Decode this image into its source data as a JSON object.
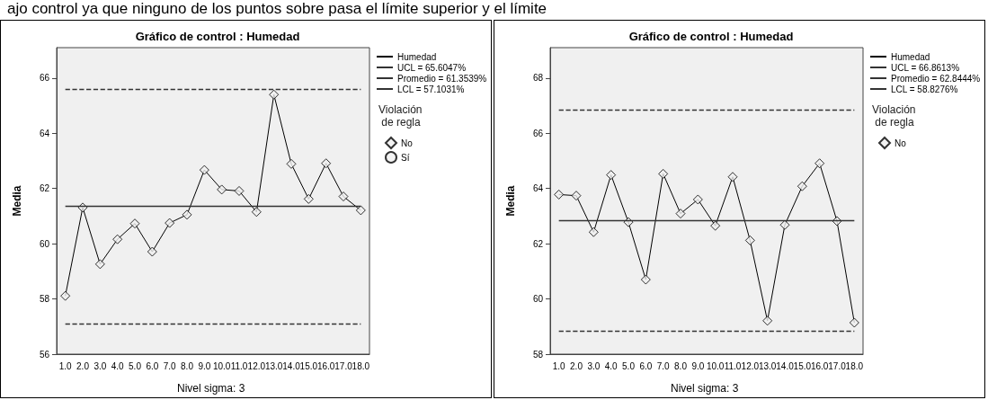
{
  "chart_data": [
    {
      "type": "line",
      "title": "Gráfico de control : Humedad",
      "ylabel": "Media",
      "annotations": [
        "ajo control ya que ninguno de los puntos sobre pasa el límite superior y el límite",
        "Nivel sigma: 3"
      ],
      "categories": [
        "1.0",
        "2.0",
        "3.0",
        "4.0",
        "5.0",
        "6.0",
        "7.0",
        "8.0",
        "9.0",
        "10.0",
        "11.0",
        "12.0",
        "13.0",
        "14.0",
        "15.0",
        "16.0",
        "17.0",
        "18.0"
      ],
      "series": [
        {
          "name": "Humedad",
          "type": "line",
          "color": "#000000",
          "marker": "none",
          "values": [
            58.11,
            61.31,
            59.26,
            60.16,
            60.73,
            59.71,
            60.75,
            61.05,
            62.67,
            61.96,
            61.91,
            61.15,
            65.4,
            62.89,
            61.62,
            62.91,
            61.71,
            61.21
          ]
        },
        {
          "name": "No",
          "type": "scatter",
          "color": "#000000",
          "marker": "diamond",
          "values": [
            58.11,
            61.31,
            59.26,
            60.16,
            60.73,
            59.71,
            60.75,
            61.05,
            62.67,
            61.96,
            61.91,
            61.15,
            65.4,
            62.89,
            61.62,
            62.91,
            61.71,
            61.21
          ]
        },
        {
          "name": "Sí",
          "type": "scatter",
          "color": "#000000",
          "marker": "circle",
          "values": [
            null,
            null,
            null,
            null,
            null,
            null,
            null,
            null,
            null,
            null,
            null,
            null,
            null,
            null,
            null,
            null,
            null,
            null
          ]
        }
      ],
      "ref_lines": [
        {
          "axis": "y",
          "value": 65.6047,
          "label": "UCL = 65.6047%",
          "line_style": "dashed",
          "color": "#333333"
        },
        {
          "axis": "y",
          "value": 61.3539,
          "label": "Promedio = 61.3539%",
          "line_style": "solid",
          "color": "#333333"
        },
        {
          "axis": "y",
          "value": 57.1031,
          "label": "LCL = 57.1031%",
          "line_style": "dashed",
          "color": "#333333"
        }
      ],
      "legend_title": "Violación de regla",
      "legend": "right",
      "grid": false,
      "ylim": [
        56,
        67.1
      ],
      "yticks": [
        56,
        58,
        60,
        62,
        64,
        66
      ]
    },
    {
      "type": "line",
      "title": "Gráfico de control : Humedad",
      "ylabel": "Media",
      "annotations": [
        "Nivel sigma: 3"
      ],
      "categories": [
        "1.0",
        "2.0",
        "3.0",
        "4.0",
        "5.0",
        "6.0",
        "7.0",
        "8.0",
        "9.0",
        "10.0",
        "11.0",
        "12.0",
        "13.0",
        "14.0",
        "15.0",
        "16.0",
        "17.0",
        "18.0"
      ],
      "series": [
        {
          "name": "Humedad",
          "type": "line",
          "color": "#000000",
          "marker": "none",
          "values": [
            63.78,
            63.74,
            62.42,
            64.49,
            62.78,
            60.7,
            64.53,
            63.09,
            63.6,
            62.65,
            64.42,
            62.12,
            59.21,
            62.68,
            64.08,
            64.91,
            62.82,
            59.14
          ]
        },
        {
          "name": "No",
          "type": "scatter",
          "color": "#000000",
          "marker": "diamond",
          "values": [
            63.78,
            63.74,
            62.42,
            64.49,
            62.78,
            60.7,
            64.53,
            63.09,
            63.6,
            62.65,
            64.42,
            62.12,
            59.21,
            62.68,
            64.08,
            64.91,
            62.82,
            59.14
          ]
        }
      ],
      "ref_lines": [
        {
          "axis": "y",
          "value": 66.8613,
          "label": "UCL = 66.8613%",
          "line_style": "dashed",
          "color": "#333333"
        },
        {
          "axis": "y",
          "value": 62.8444,
          "label": "Promedio = 62.8444%",
          "line_style": "solid",
          "color": "#333333"
        },
        {
          "axis": "y",
          "value": 58.8276,
          "label": "LCL = 58.8276%",
          "line_style": "dashed",
          "color": "#333333"
        }
      ],
      "legend_title": "Violación de regla",
      "legend": "right",
      "grid": false,
      "ylim": [
        58,
        69.1
      ],
      "yticks": [
        58,
        60,
        62,
        64,
        66,
        68
      ]
    }
  ]
}
